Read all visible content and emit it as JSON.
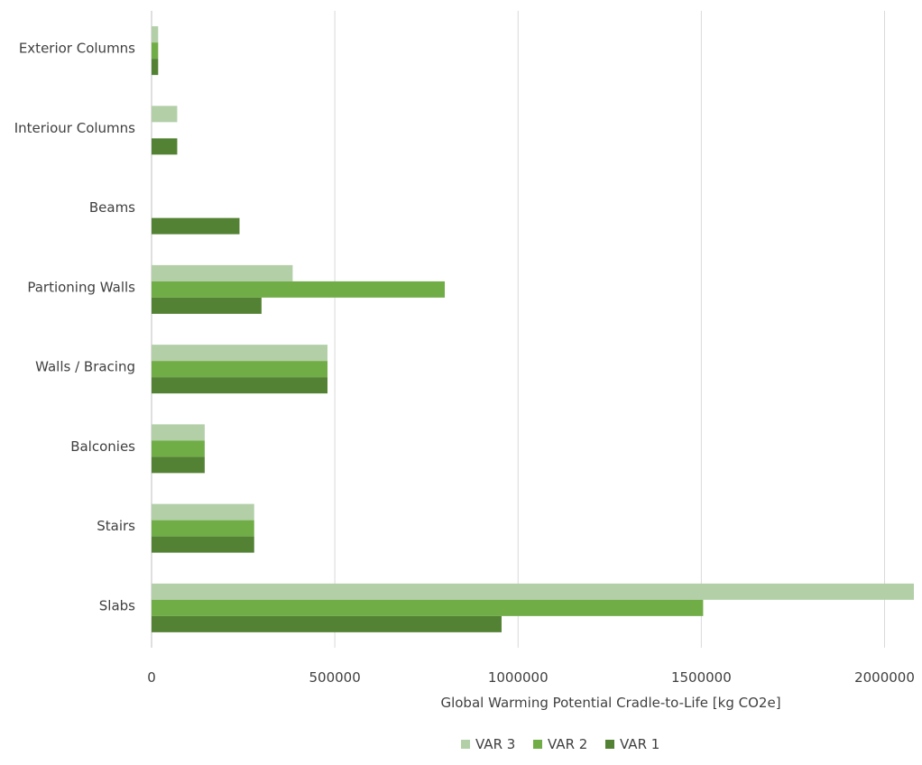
{
  "chart_data": {
    "type": "bar",
    "orientation": "horizontal",
    "categories": [
      "Exterior Columns",
      "Interiour Columns",
      "Beams",
      "Partioning Walls",
      "Walls / Bracing",
      "Balconies",
      "Stairs",
      "Slabs"
    ],
    "series": [
      {
        "name": "VAR 3",
        "color": "#b3cfa8",
        "values": [
          18000,
          70000,
          0,
          385000,
          480000,
          145000,
          280000,
          2080000
        ]
      },
      {
        "name": "VAR 2",
        "color": "#70ad47",
        "values": [
          18000,
          0,
          0,
          800000,
          480000,
          145000,
          280000,
          1505000
        ]
      },
      {
        "name": "VAR 1",
        "color": "#548235",
        "values": [
          18000,
          70000,
          240000,
          300000,
          480000,
          145000,
          280000,
          955000
        ]
      }
    ],
    "xlabel": "Global Warming Potential Cradle-to-Life [kg CO2e]",
    "xlim": [
      0,
      2080000
    ],
    "xticks": [
      0,
      500000,
      1000000,
      1500000,
      2000000
    ],
    "xtick_labels": [
      "0",
      "500000",
      "1000000",
      "1500000",
      "2000000"
    ],
    "grid": "vertical",
    "legend": {
      "position": "bottom",
      "entries": [
        "VAR 3",
        "VAR 2",
        "VAR 1"
      ]
    }
  },
  "colors": {
    "grid": "#d9d9d9",
    "axis": "#bfbfbf",
    "text": "#404040"
  }
}
